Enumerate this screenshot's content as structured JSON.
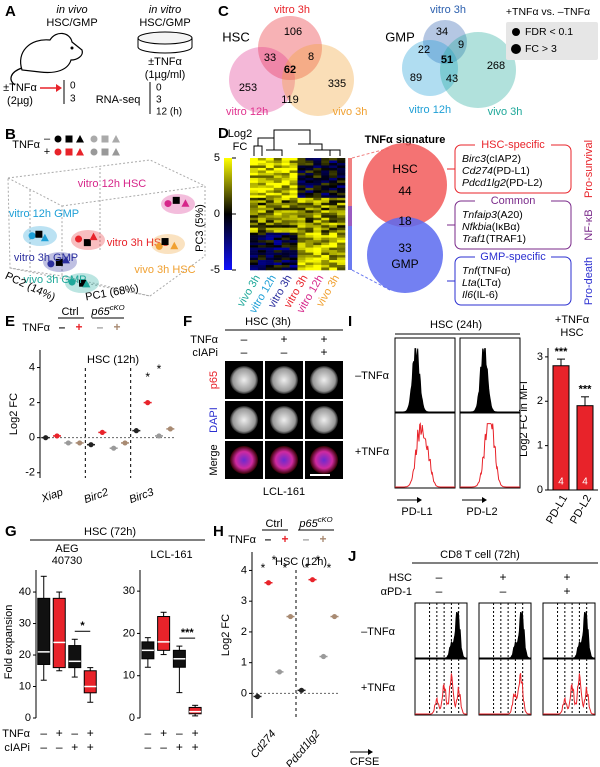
{
  "A": {
    "label": "A",
    "in_vivo": "in vivo",
    "in_vivo_cells": "HSC/GMP",
    "in_vitro": "in vitro",
    "in_vitro_cells": "HSC/GMP",
    "vivo_treatment": "±TNFα",
    "vivo_dose": "(2µg)",
    "vivo_times": [
      0,
      3
    ],
    "vitro_treatment": "±TNFα",
    "vitro_dose": "(1µg/ml)",
    "readout": "RNA-seq",
    "vitro_times": [
      0,
      3,
      "12 (h)"
    ]
  },
  "B": {
    "label": "B",
    "tnf_label": "TNFα",
    "signs": [
      "–",
      "+"
    ],
    "groups": [
      {
        "name": "vitro 12h HSC",
        "color": "#d6268a"
      },
      {
        "name": "vitro 12h GMP",
        "color": "#1e9fd6"
      },
      {
        "name": "vitro 3h HSC",
        "color": "#e8232a"
      },
      {
        "name": "vitro 3h GMP",
        "color": "#2b2f9e"
      },
      {
        "name": "vivo 3h HSC",
        "color": "#f0a030"
      },
      {
        "name": "vivo 3h GMP",
        "color": "#1fa89a"
      }
    ],
    "axes": [
      "PC1 (68%)",
      "PC2 (14%)",
      "PC3 (5%)"
    ]
  },
  "C": {
    "label": "C",
    "venns": [
      {
        "title": "HSC",
        "sets": [
          {
            "name": "vitro 3h",
            "color": "#e8232a"
          },
          {
            "name": "vitro 12h",
            "color": "#e0338f"
          },
          {
            "name": "vivo 3h",
            "color": "#f0a030"
          }
        ],
        "counts": [
          106,
          33,
          8,
          62,
          253,
          119,
          335
        ]
      },
      {
        "title": "GMP",
        "sets": [
          {
            "name": "vitro 3h",
            "color": "#2b5fae"
          },
          {
            "name": "vitro 12h",
            "color": "#1e9fd6"
          },
          {
            "name": "vivo 3h",
            "color": "#1fa89a"
          }
        ],
        "counts": [
          34,
          22,
          9,
          51,
          89,
          43,
          268
        ]
      }
    ],
    "legend": {
      "title": "+TNFα vs. –TNFα",
      "items": [
        "FDR < 0.1",
        "FC > 3"
      ]
    }
  },
  "D": {
    "label": "D",
    "colorbar_title": [
      "Log2",
      "FC"
    ],
    "colorbar_ticks": [
      5,
      0,
      -5
    ],
    "columns": [
      {
        "name": "vivo 3h",
        "color": "#1fa89a"
      },
      {
        "name": "vitro 12h",
        "color": "#1e9fd6"
      },
      {
        "name": "vitro 3h",
        "color": "#2b2f9e"
      },
      {
        "name": "vitro 3h",
        "color": "#e8232a"
      },
      {
        "name": "vitro 12h",
        "color": "#d6268a"
      },
      {
        "name": "vivo 3h",
        "color": "#f0a030"
      }
    ],
    "signature_title": "TNFα signature",
    "hsc": "HSC",
    "hsc_count": 44,
    "common_count": 18,
    "gmp_count": 33,
    "gmp": "GMP",
    "groups": [
      {
        "title": "HSC-specific",
        "color": "#e8232a",
        "category": "Pro-survival",
        "genes": [
          {
            "gene": "Birc3",
            "protein": "(cIAP2)"
          },
          {
            "gene": "Cd274",
            "protein": "(PD-L1)"
          },
          {
            "gene": "Pdcd1lg2",
            "protein": "(PD-L2)"
          }
        ]
      },
      {
        "title": "Common",
        "color": "#7a2a8a",
        "category": "NF-κB",
        "genes": [
          {
            "gene": "Tnfaip3",
            "protein": "(A20)"
          },
          {
            "gene": "Nfkbia",
            "protein": "(IκBα)"
          },
          {
            "gene": "Traf1",
            "protein": "(TRAF1)"
          }
        ]
      },
      {
        "title": "GMP-specific",
        "color": "#2b2fd0",
        "category": "Pro-death",
        "genes": [
          {
            "gene": "Tnf",
            "protein": "(TNFα)"
          },
          {
            "gene": "Lta",
            "protein": "(LTα)"
          },
          {
            "gene": "Il6",
            "protein": "(IL-6)"
          }
        ]
      }
    ]
  },
  "E": {
    "label": "E",
    "tnf_label": "TNFα",
    "ctrl": "Ctrl",
    "ko": {
      "base": "p65",
      "sup": "cKO"
    },
    "signs": [
      "–",
      "+",
      "–",
      "+"
    ],
    "sign_colors": [
      "#222222",
      "#e8232a",
      "#9a9a9a",
      "#a88a72"
    ],
    "title": "HSC (12h)",
    "ylabel": "Log2 FC",
    "ylim": [
      -2.3,
      5
    ],
    "yticks": [
      -2,
      0,
      2,
      4
    ],
    "categories": [
      "Xiap",
      "Birc2",
      "Birc3"
    ],
    "means": [
      [
        0,
        0.1,
        -0.3,
        -0.3
      ],
      [
        -0.4,
        0.3,
        -0.6,
        -0.3
      ],
      [
        0.4,
        2.0,
        0.1,
        0.5
      ]
    ],
    "significance": [
      "*",
      "*"
    ]
  },
  "F": {
    "label": "F",
    "title": "HSC (3h)",
    "row_labels": [
      "TNFα",
      "cIAPi"
    ],
    "conditions": [
      [
        "–",
        "–"
      ],
      [
        "+",
        "–"
      ],
      [
        "+",
        "+"
      ]
    ],
    "channels": [
      "p65",
      "DAPI",
      "Merge"
    ],
    "caption": "LCL-161"
  },
  "G": {
    "label": "G",
    "title": "HSC (72h)",
    "ylabel": "Fold expansion",
    "row_labels": [
      "TNFα",
      "cIAPi"
    ],
    "tnf_signs": [
      "–",
      "+",
      "–",
      "+"
    ],
    "ciapi_signs": [
      "–",
      "–",
      "+",
      "+"
    ],
    "box_colors": [
      "#111111",
      "#e8232a",
      "#111111",
      "#e8232a"
    ],
    "panels": [
      {
        "title": [
          "AEG",
          "40730"
        ],
        "ylim": [
          0,
          47
        ],
        "yticks": [
          0,
          10,
          20,
          30,
          40
        ],
        "boxes": [
          {
            "min": 12,
            "q1": 17,
            "median": 21,
            "q3": 38,
            "max": 45
          },
          {
            "min": 15,
            "q1": 16,
            "median": 24,
            "q3": 38,
            "max": 40
          },
          {
            "min": 13,
            "q1": 16,
            "median": 18,
            "q3": 23,
            "max": 25
          },
          {
            "min": 5,
            "q1": 8,
            "median": 10,
            "q3": 15,
            "max": 16
          }
        ],
        "significance": "*"
      },
      {
        "title": [
          "LCL-161"
        ],
        "ylim": [
          0,
          35
        ],
        "yticks": [
          0,
          10,
          20,
          30
        ],
        "boxes": [
          {
            "min": 12,
            "q1": 14,
            "median": 16,
            "q3": 18,
            "max": 19
          },
          {
            "min": 15,
            "q1": 16,
            "median": 18,
            "q3": 24,
            "max": 25
          },
          {
            "min": 6,
            "q1": 12,
            "median": 14,
            "q3": 16,
            "max": 17
          },
          {
            "min": 0.5,
            "q1": 1,
            "median": 1.5,
            "q3": 2.5,
            "max": 3
          }
        ],
        "significance": "***"
      }
    ]
  },
  "H": {
    "label": "H",
    "tnf_label": "TNFα",
    "ctrl": "Ctrl",
    "ko": {
      "base": "p65",
      "sup": "cKO"
    },
    "signs": [
      "–",
      "+",
      "–",
      "+"
    ],
    "sign_colors": [
      "#222222",
      "#e8232a",
      "#9a9a9a",
      "#a88a72"
    ],
    "title": "HSC (12h)",
    "ylabel": "Log2 FC",
    "ylim": [
      -0.8,
      4.6
    ],
    "yticks": [
      0,
      1,
      2,
      3,
      4
    ],
    "categories": [
      "Cd274",
      "Pdcd1lg2"
    ],
    "means": [
      [
        -0.1,
        3.6,
        0.7,
        2.5
      ],
      [
        0.1,
        3.7,
        1.2,
        2.5
      ]
    ],
    "significance": [
      [
        "*",
        "*",
        "*"
      ],
      [
        "*",
        "*",
        "*"
      ]
    ]
  },
  "I": {
    "label": "I",
    "title": "HSC (24h)",
    "rows": [
      "–TNFα",
      "+TNFα"
    ],
    "markers": [
      "PD-L1",
      "PD-L2"
    ],
    "bar_title": [
      "+TNFα",
      "HSC"
    ],
    "ylabel": "Log2 FC in MFI",
    "ylim": [
      0,
      3.2
    ],
    "yticks": [
      0,
      1,
      2,
      3
    ],
    "categories": [
      "PD-L1",
      "PD-L2"
    ],
    "values": [
      2.8,
      1.9
    ],
    "errors": [
      0.15,
      0.2
    ],
    "n": [
      4,
      4
    ],
    "significance": [
      "***",
      "***"
    ],
    "color": "#e8232a"
  },
  "J": {
    "label": "J",
    "title": "CD8 T cell (72h)",
    "row_labels": [
      "HSC",
      "αPD-1"
    ],
    "conditions": [
      [
        "–",
        "–"
      ],
      [
        "+",
        "–"
      ],
      [
        "+",
        "+"
      ]
    ],
    "rows": [
      "–TNFα",
      "+TNFα"
    ],
    "xlabel": "CFSE"
  }
}
